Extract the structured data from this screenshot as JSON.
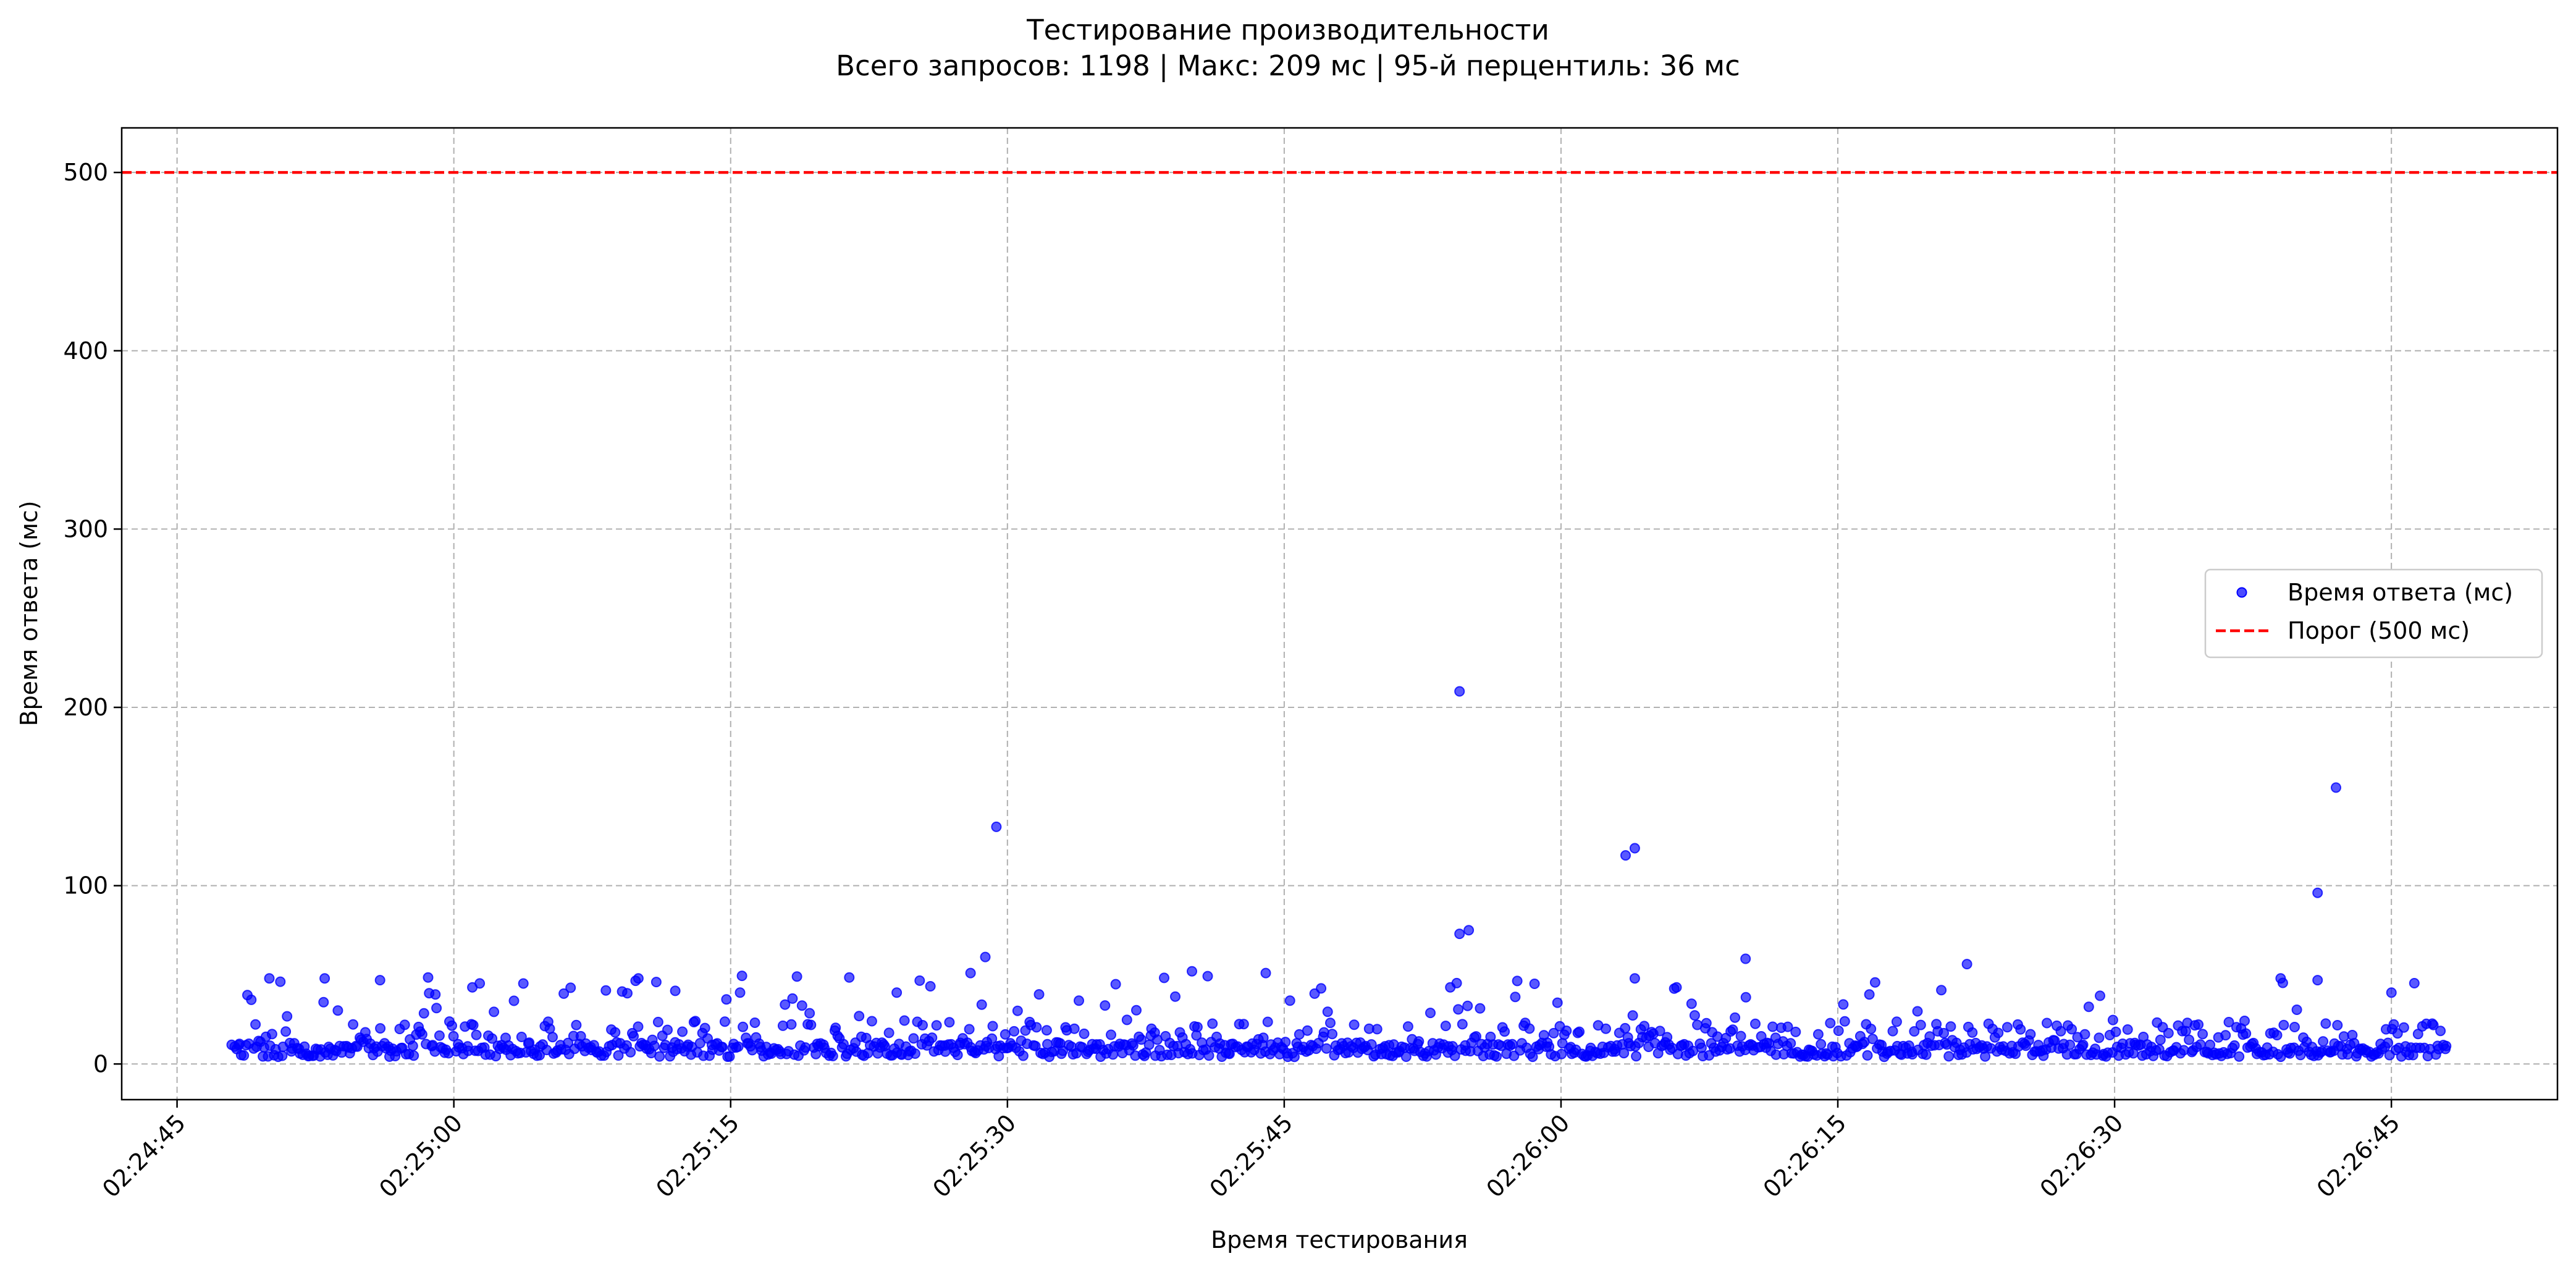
{
  "chart_data": {
    "type": "scatter",
    "title": "Тестирование производительности",
    "subtitle": "Всего запросов: 1198 | Макс: 209 мс | 95-й перцентиль: 36 мс",
    "xlabel": "Время тестирования",
    "ylabel": "Время ответа (мс)",
    "x_ticks": [
      "02:24:45",
      "02:25:00",
      "02:25:15",
      "02:25:30",
      "02:25:45",
      "02:26:00",
      "02:26:15",
      "02:26:30",
      "02:26:45"
    ],
    "y_ticks": [
      "0",
      "100",
      "200",
      "300",
      "400",
      "500"
    ],
    "xlim": [
      "02:24:42",
      "02:26:54"
    ],
    "ylim": [
      -20,
      525
    ],
    "grid": true,
    "grid_style": "dashed",
    "legend_position": "right",
    "x_start": "02:24:48",
    "x_end": "02:26:48",
    "series": [
      {
        "name": "Время ответа (мс)",
        "color": "#0000ff",
        "marker": "circle",
        "typical_range_ms": [
          4,
          30
        ],
        "outliers": [
          {
            "time": "02:24:50",
            "value": 48
          },
          {
            "time": "02:24:53",
            "value": 48
          },
          {
            "time": "02:24:56",
            "value": 47
          },
          {
            "time": "02:24:59",
            "value": 39
          },
          {
            "time": "02:25:01",
            "value": 43
          },
          {
            "time": "02:25:10",
            "value": 48
          },
          {
            "time": "02:25:12",
            "value": 41
          },
          {
            "time": "02:25:24",
            "value": 40
          },
          {
            "time": "02:25:28",
            "value": 51
          },
          {
            "time": "02:25:28.8",
            "value": 60
          },
          {
            "time": "02:25:29.4",
            "value": 133
          },
          {
            "time": "02:25:40",
            "value": 52
          },
          {
            "time": "02:25:44",
            "value": 51
          },
          {
            "time": "02:25:54.5",
            "value": 209
          },
          {
            "time": "02:25:54.5",
            "value": 73
          },
          {
            "time": "02:25:55",
            "value": 75
          },
          {
            "time": "02:25:54",
            "value": 43
          },
          {
            "time": "02:26:03.5",
            "value": 117
          },
          {
            "time": "02:26:04",
            "value": 121
          },
          {
            "time": "02:26:04",
            "value": 48
          },
          {
            "time": "02:26:10",
            "value": 59
          },
          {
            "time": "02:26:22",
            "value": 56
          },
          {
            "time": "02:26:41",
            "value": 96
          },
          {
            "time": "02:26:42",
            "value": 155
          },
          {
            "time": "02:26:41",
            "value": 47
          },
          {
            "time": "02:26:39",
            "value": 48
          },
          {
            "time": "02:26:45",
            "value": 40
          }
        ]
      },
      {
        "name": "Порог (500 мс)",
        "color": "#ff0000",
        "style": "dashed",
        "value": 500
      }
    ]
  }
}
